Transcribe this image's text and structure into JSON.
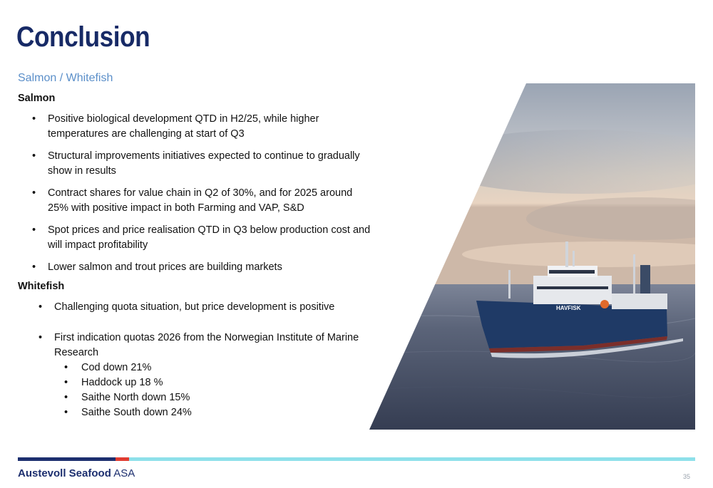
{
  "slide": {
    "title": "Conclusion",
    "subtitle": "Salmon / Whitefish",
    "page_number": "35"
  },
  "salmon": {
    "heading": "Salmon",
    "bullets": [
      "Positive biological development QTD in H2/25, while higher temperatures are challenging at start of Q3",
      "Structural improvements initiatives expected to continue to gradually show in results",
      "Contract shares for value chain in Q2 of 30%, and for 2025 around 25% with positive impact in both Farming and VAP, S&D",
      "Spot prices and price realisation QTD in Q3 below production cost and will impact profitability",
      "Lower salmon and trout prices are building markets"
    ]
  },
  "whitefish": {
    "heading": "Whitefish",
    "bullets": [
      "Challenging quota situation, but price development is positive",
      "First indication quotas 2026 from the Norwegian Institute of Marine Research"
    ],
    "sub_bullets": [
      "Cod down 21%",
      "Haddock up 18 %",
      "Saithe North down 15%",
      "Saithe South down 24%"
    ]
  },
  "image": {
    "vessel_name": "HAVFISK"
  },
  "footer": {
    "brand_bold": "Austevoll Seafood",
    "brand_suffix": "ASA"
  },
  "colors": {
    "title": "#172a66",
    "subtitle": "#5b8fc9",
    "bar_navy": "#1d2f6f",
    "bar_red": "#e03c31",
    "bar_cyan": "#8ee0ea"
  }
}
